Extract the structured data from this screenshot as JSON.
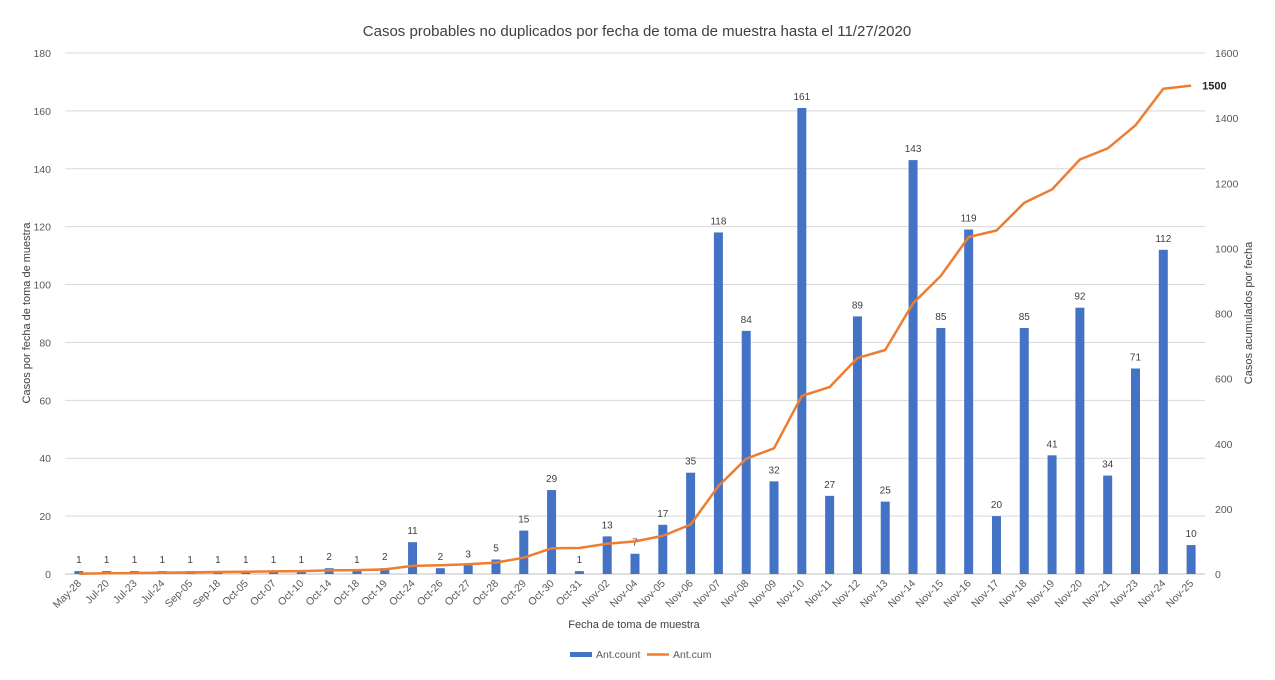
{
  "chart_data": {
    "type": "bar",
    "title": "Casos probables no duplicados por fecha de toma de muestra hasta el 11/27/2020",
    "xlabel": "Fecha de toma de muestra",
    "ylabel": "Casos por fecha de toma de muestra",
    "y2label": "Casos acumulados por fecha",
    "ylim": [
      0,
      180
    ],
    "y_ticks": [
      0,
      20,
      40,
      60,
      80,
      100,
      120,
      140,
      160,
      180
    ],
    "y2lim": [
      0,
      1600
    ],
    "y2_ticks": [
      0,
      200,
      400,
      600,
      800,
      1000,
      1200,
      1400,
      1600
    ],
    "grid": true,
    "legend_position": "bottom",
    "categories": [
      "May-28",
      "Jul-20",
      "Jul-23",
      "Jul-24",
      "Sep-05",
      "Sep-18",
      "Oct-05",
      "Oct-07",
      "Oct-10",
      "Oct-14",
      "Oct-18",
      "Oct-19",
      "Oct-24",
      "Oct-26",
      "Oct-27",
      "Oct-28",
      "Oct-29",
      "Oct-30",
      "Oct-31",
      "Nov-02",
      "Nov-04",
      "Nov-05",
      "Nov-06",
      "Nov-07",
      "Nov-08",
      "Nov-09",
      "Nov-10",
      "Nov-11",
      "Nov-12",
      "Nov-13",
      "Nov-14",
      "Nov-15",
      "Nov-16",
      "Nov-17",
      "Nov-18",
      "Nov-19",
      "Nov-20",
      "Nov-21",
      "Nov-23",
      "Nov-24",
      "Nov-25"
    ],
    "series": [
      {
        "name": "Ant.count",
        "type": "bar",
        "axis": "left",
        "color": "#4472C4",
        "values": [
          1,
          1,
          1,
          1,
          1,
          1,
          1,
          1,
          1,
          2,
          1,
          2,
          11,
          2,
          3,
          5,
          15,
          29,
          1,
          13,
          7,
          17,
          35,
          118,
          84,
          32,
          161,
          27,
          89,
          25,
          143,
          85,
          119,
          20,
          85,
          41,
          92,
          34,
          71,
          112,
          10
        ]
      },
      {
        "name": "Ant.cum",
        "type": "line",
        "axis": "right",
        "color": "#ED7D31",
        "values": [
          1,
          2,
          3,
          4,
          5,
          6,
          7,
          8,
          9,
          11,
          12,
          14,
          25,
          27,
          30,
          35,
          50,
          79,
          80,
          93,
          100,
          117,
          152,
          270,
          354,
          386,
          547,
          574,
          663,
          688,
          831,
          916,
          1035,
          1055,
          1140,
          1181,
          1273,
          1307,
          1378,
          1490,
          1500
        ],
        "end_label": "1500"
      }
    ]
  }
}
